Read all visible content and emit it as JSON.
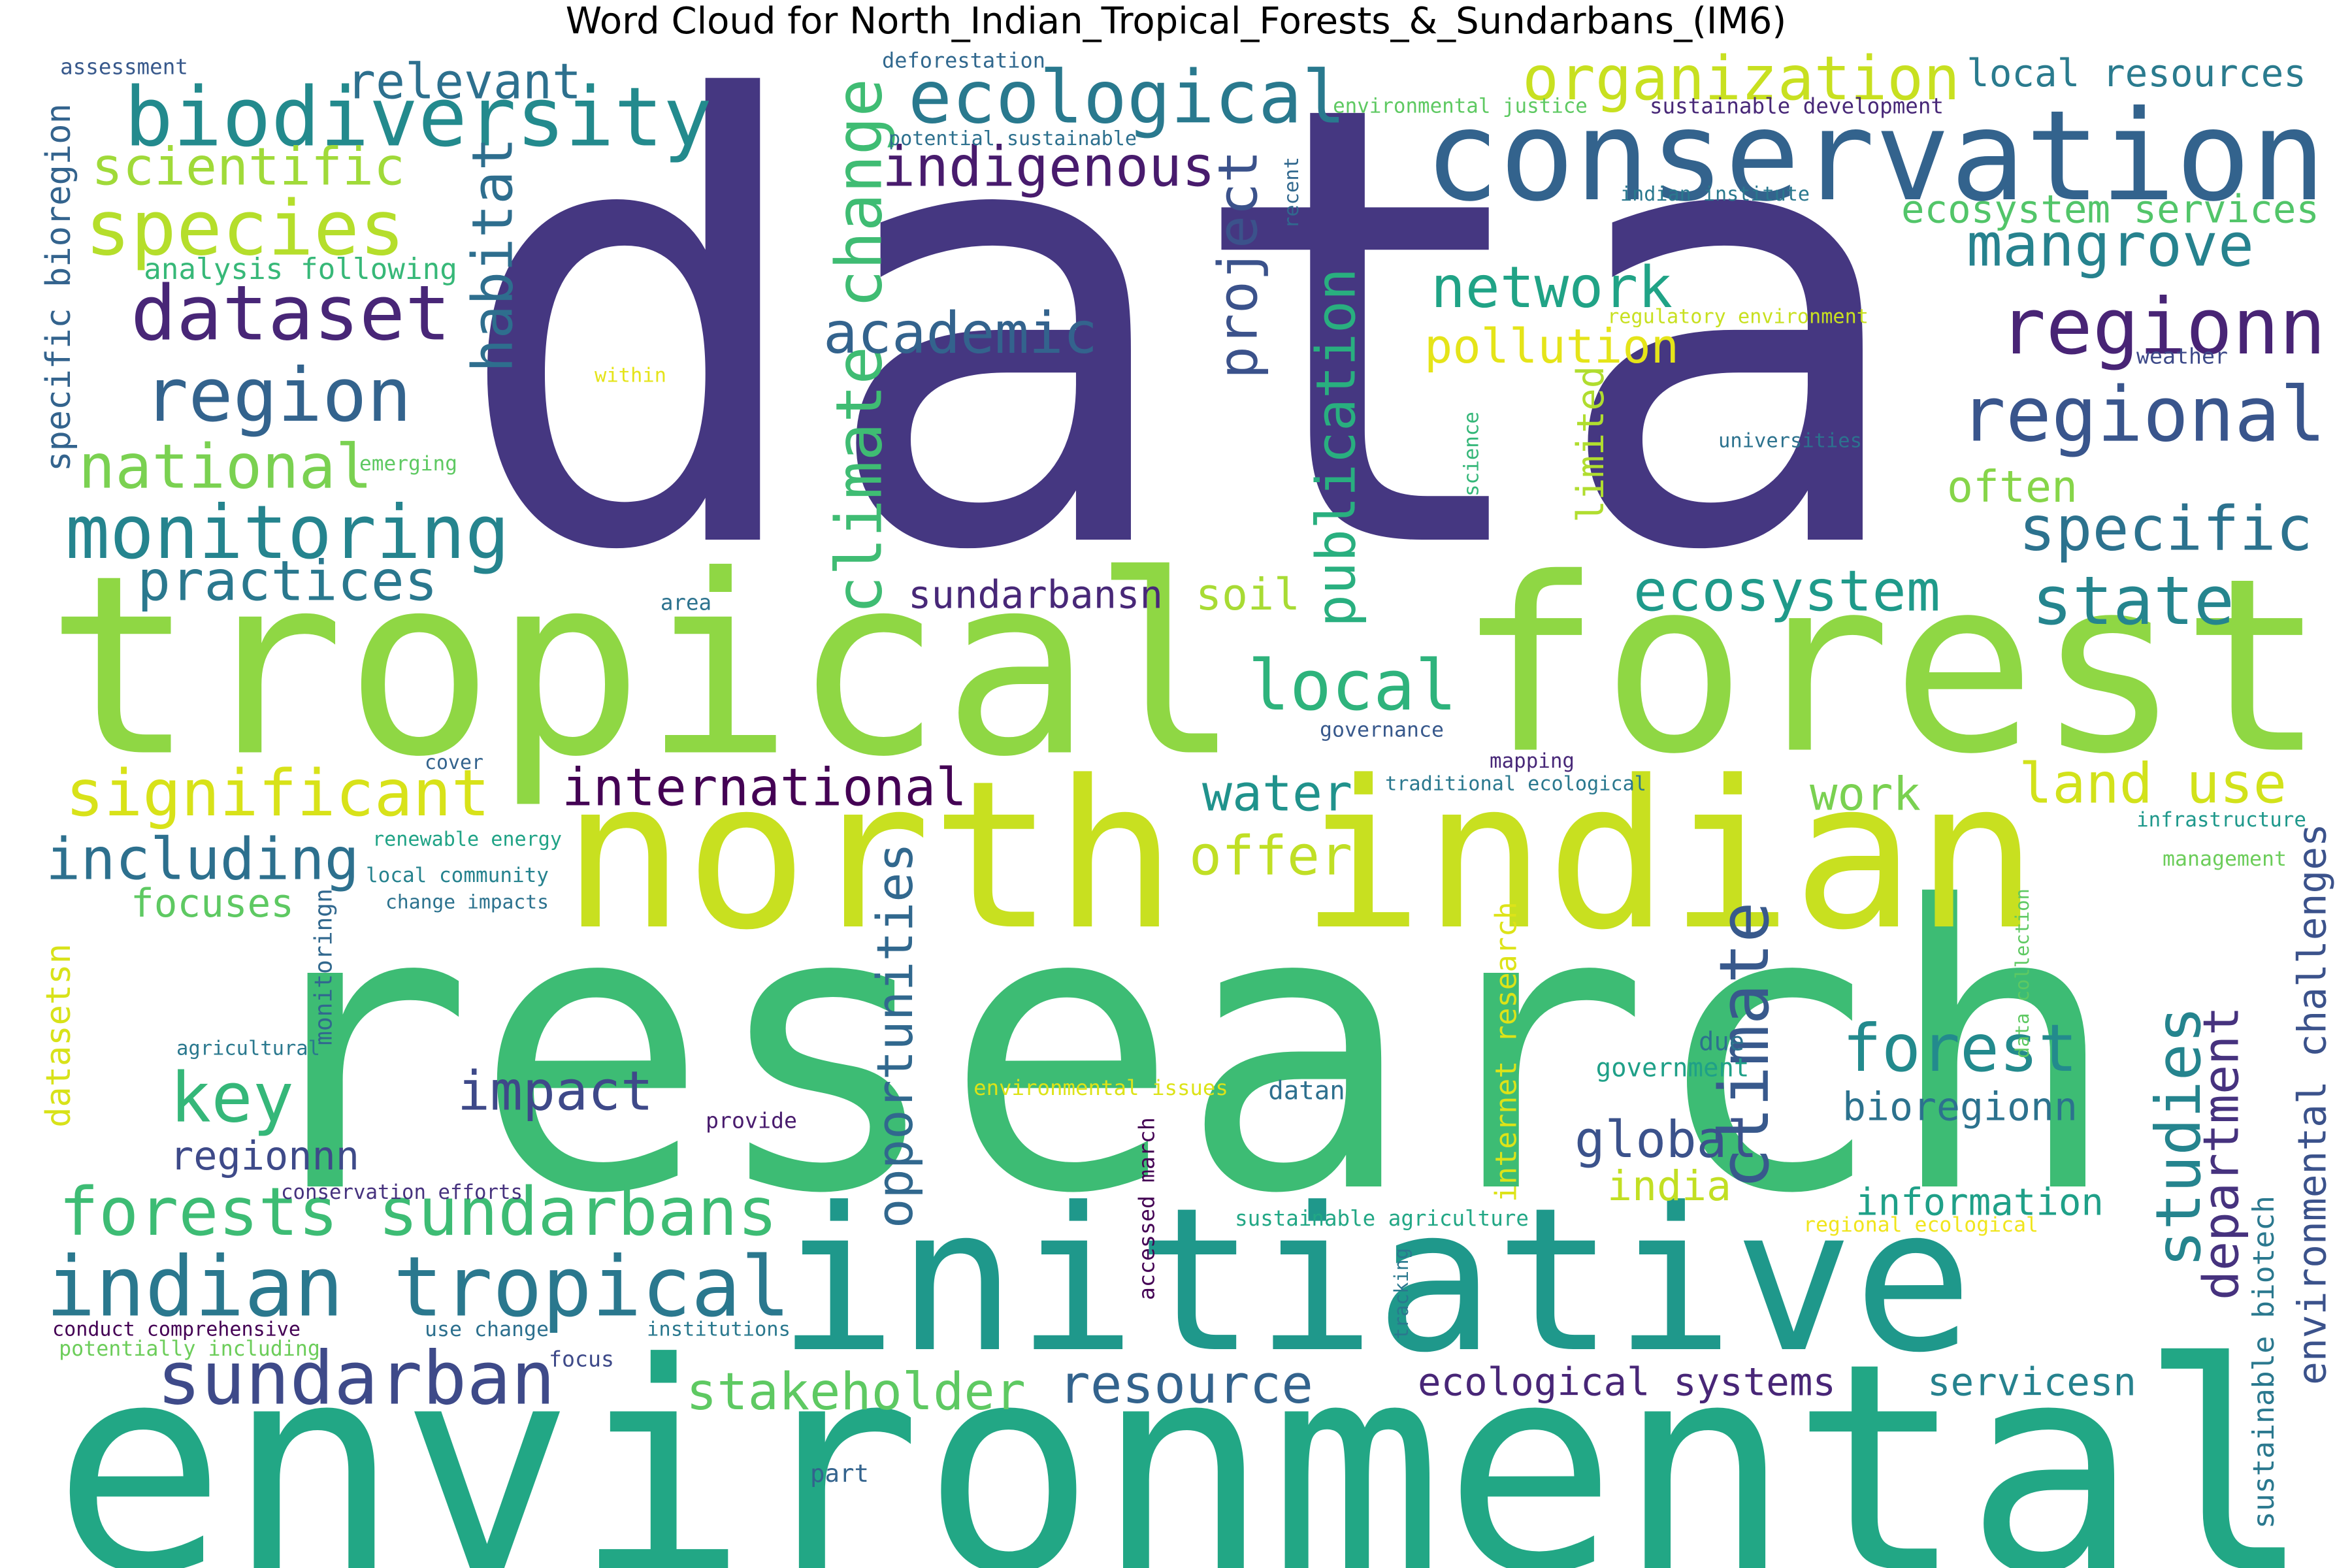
{
  "title": "Word Cloud for North_Indian_Tropical_Forests_&_Sundarbans_(IM6)",
  "words": [
    {
      "text": "data",
      "color": "#453781"
    },
    {
      "text": "research",
      "color": "#3dbc74"
    },
    {
      "text": "environmental",
      "color": "#22a785"
    },
    {
      "text": "tropical",
      "color": "#8fd744"
    },
    {
      "text": "forest",
      "color": "#8fd744"
    },
    {
      "text": "north indian",
      "color": "#c8e020"
    },
    {
      "text": "initiative",
      "color": "#1f988b"
    },
    {
      "text": "conservation",
      "color": "#33638d"
    },
    {
      "text": "biodiversity",
      "color": "#238a8d"
    },
    {
      "text": "ecological",
      "color": "#29798e"
    },
    {
      "text": "species",
      "color": "#b5de2b"
    },
    {
      "text": "dataset",
      "color": "#482677"
    },
    {
      "text": "region",
      "color": "#33638d"
    },
    {
      "text": "monitoring",
      "color": "#25848e"
    },
    {
      "text": "indian tropical",
      "color": "#2a788e"
    },
    {
      "text": "forests sundarbans",
      "color": "#3dbc74"
    },
    {
      "text": "significant",
      "color": "#d8e219"
    },
    {
      "text": "including",
      "color": "#2d708e"
    },
    {
      "text": "sundarban",
      "color": "#3e4a89"
    },
    {
      "text": "regionn",
      "color": "#482475"
    },
    {
      "text": "regional",
      "color": "#39558c"
    },
    {
      "text": "specific",
      "color": "#2c728e"
    },
    {
      "text": "organization",
      "color": "#c8e020"
    },
    {
      "text": "local resources",
      "color": "#2a7b8e"
    },
    {
      "text": "ecosystem services",
      "color": "#52c569"
    },
    {
      "text": "mangrove",
      "color": "#26828e"
    },
    {
      "text": "network",
      "color": "#20a386"
    },
    {
      "text": "pollution",
      "color": "#e5e419"
    },
    {
      "text": "climate change",
      "color": "#3fbc73"
    },
    {
      "text": "project",
      "color": "#3b528b"
    },
    {
      "text": "publication",
      "color": "#29af7f"
    },
    {
      "text": "habitat",
      "color": "#2e6e8e"
    },
    {
      "text": "relevant",
      "color": "#2d708e"
    },
    {
      "text": "scientific",
      "color": "#a0da39"
    },
    {
      "text": "indigenous",
      "color": "#481b6d"
    },
    {
      "text": "academic",
      "color": "#33638d"
    },
    {
      "text": "national",
      "color": "#7ad151"
    },
    {
      "text": "practices",
      "color": "#2a788e"
    },
    {
      "text": "local",
      "color": "#2eb37c"
    },
    {
      "text": "ecosystem",
      "color": "#1f9a8a"
    },
    {
      "text": "state",
      "color": "#25858e"
    },
    {
      "text": "land use",
      "color": "#d2e21b"
    },
    {
      "text": "international",
      "color": "#440154"
    },
    {
      "text": "water",
      "color": "#20928c"
    },
    {
      "text": "offer",
      "color": "#c0df25"
    },
    {
      "text": "work",
      "color": "#7ad151"
    },
    {
      "text": "opportunities",
      "color": "#31688e"
    },
    {
      "text": "climate",
      "color": "#38598c"
    },
    {
      "text": "internet research",
      "color": "#dde318"
    },
    {
      "text": "key",
      "color": "#35b779"
    },
    {
      "text": "impact",
      "color": "#3e4989"
    },
    {
      "text": "global",
      "color": "#3b528b"
    },
    {
      "text": "india",
      "color": "#c2df23"
    },
    {
      "text": "forest",
      "color": "#238a8d"
    },
    {
      "text": "bioregionn",
      "color": "#2c728e"
    },
    {
      "text": "studies",
      "color": "#25848e"
    },
    {
      "text": "department",
      "color": "#46327e"
    },
    {
      "text": "environmental challenges",
      "color": "#3b528b"
    },
    {
      "text": "information",
      "color": "#1fa088"
    },
    {
      "text": "resource",
      "color": "#33638d"
    },
    {
      "text": "stakeholder",
      "color": "#5ec962"
    },
    {
      "text": "ecological systems",
      "color": "#482677"
    },
    {
      "text": "servicesn",
      "color": "#26828e"
    },
    {
      "text": "sundarbansn",
      "color": "#482878"
    },
    {
      "text": "soil",
      "color": "#a8db34"
    },
    {
      "text": "focuses",
      "color": "#5ec962"
    },
    {
      "text": "regionnn",
      "color": "#3e4a89"
    },
    {
      "text": "specific bioregion",
      "color": "#33638d"
    },
    {
      "text": "analysis following",
      "color": "#37b878"
    },
    {
      "text": "datasetsn",
      "color": "#d8e219"
    },
    {
      "text": "limited",
      "color": "#b0dd2f"
    },
    {
      "text": "often",
      "color": "#86d549"
    },
    {
      "text": "sustainable biotech",
      "color": "#2a788e"
    },
    {
      "text": "assessment",
      "color": "#38598c"
    },
    {
      "text": "deforestation",
      "color": "#31688e"
    },
    {
      "text": "potential sustainable",
      "color": "#2d708e"
    },
    {
      "text": "environmental justice",
      "color": "#5ec962"
    },
    {
      "text": "sustainable development",
      "color": "#482878"
    },
    {
      "text": "indian institute",
      "color": "#2a788e"
    },
    {
      "text": "recent",
      "color": "#31688e"
    },
    {
      "text": "regulatory environment",
      "color": "#c8e020"
    },
    {
      "text": "weather",
      "color": "#3e4a89"
    },
    {
      "text": "within",
      "color": "#e5e419"
    },
    {
      "text": "emerging",
      "color": "#5ec962"
    },
    {
      "text": "science",
      "color": "#35b779"
    },
    {
      "text": "universities",
      "color": "#2c728e"
    },
    {
      "text": "area",
      "color": "#2c728e"
    },
    {
      "text": "governance",
      "color": "#38598c"
    },
    {
      "text": "cover",
      "color": "#33638d"
    },
    {
      "text": "mapping",
      "color": "#482878"
    },
    {
      "text": "traditional ecological",
      "color": "#2a788e"
    },
    {
      "text": "renewable energy",
      "color": "#20a386"
    },
    {
      "text": "local community",
      "color": "#26828e"
    },
    {
      "text": "change impacts",
      "color": "#2c728e"
    },
    {
      "text": "monitoringn",
      "color": "#31688e"
    },
    {
      "text": "infrastructure",
      "color": "#1f988b"
    },
    {
      "text": "management",
      "color": "#6ccd5a"
    },
    {
      "text": "data collection",
      "color": "#5ec962"
    },
    {
      "text": "agricultural",
      "color": "#2a788e"
    },
    {
      "text": "environmental issues",
      "color": "#dde318"
    },
    {
      "text": "provide",
      "color": "#481b6d"
    },
    {
      "text": "datan",
      "color": "#2d708e"
    },
    {
      "text": "due",
      "color": "#2c728e"
    },
    {
      "text": "government",
      "color": "#1fa088"
    },
    {
      "text": "accessed march",
      "color": "#440154"
    },
    {
      "text": "conservation efforts",
      "color": "#46327e"
    },
    {
      "text": "sustainable agriculture",
      "color": "#22a785"
    },
    {
      "text": "regional ecological",
      "color": "#f0e51c"
    },
    {
      "text": "conduct comprehensive",
      "color": "#440154"
    },
    {
      "text": "potentially including",
      "color": "#6ccd5a"
    },
    {
      "text": "use change",
      "color": "#2d708e"
    },
    {
      "text": "institutions",
      "color": "#2a788e"
    },
    {
      "text": "focus",
      "color": "#3e4a89"
    },
    {
      "text": "tracking",
      "color": "#2a788e"
    },
    {
      "text": "part",
      "color": "#33638d"
    }
  ]
}
